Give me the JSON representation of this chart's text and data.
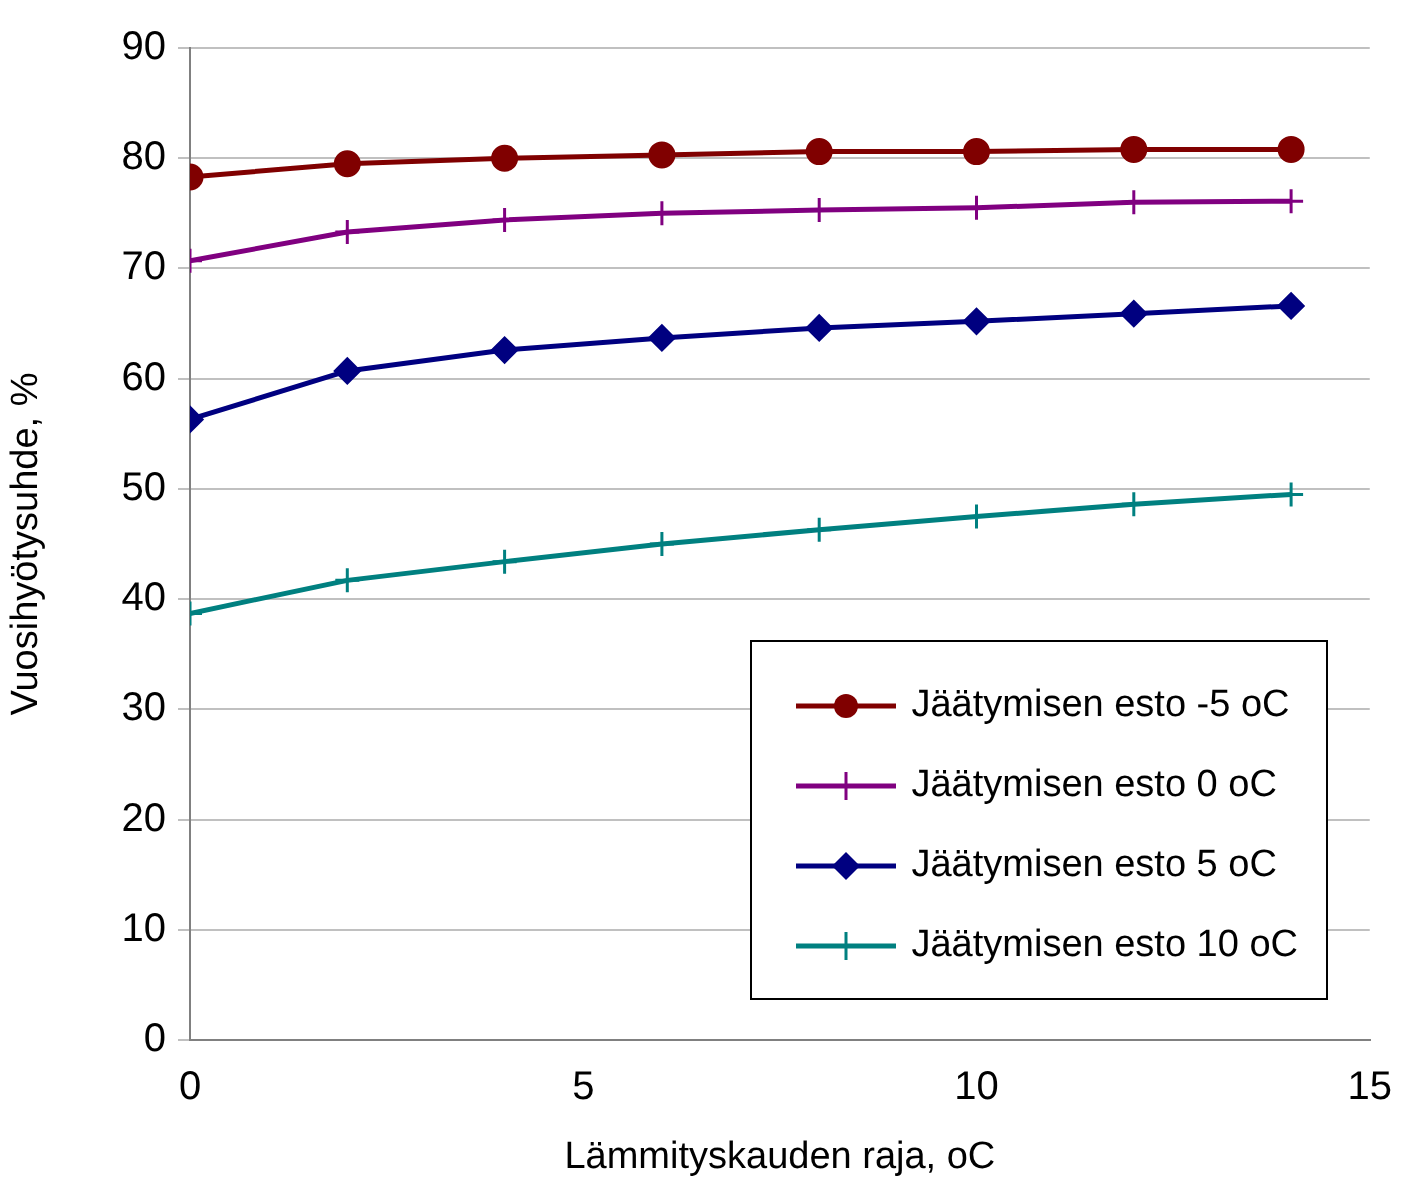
{
  "chart_data": {
    "type": "line",
    "xlabel": "Lämmityskauden raja, oC",
    "ylabel": "Vuosihyötysuhde, %",
    "x": [
      0,
      2,
      4,
      6,
      8,
      10,
      12,
      14
    ],
    "xlim": [
      0,
      15
    ],
    "xticks": [
      0,
      5,
      10,
      15
    ],
    "ylim": [
      0,
      90
    ],
    "yticks": [
      0,
      10,
      20,
      30,
      40,
      50,
      60,
      70,
      80,
      90
    ],
    "grid": "y",
    "legend": "bottom right",
    "line_style": "solid",
    "series": [
      {
        "name": "Jäätymisen esto -5 oC",
        "color": "#800000",
        "marker": "circle",
        "values": [
          78.3,
          79.5,
          80.0,
          80.3,
          80.6,
          80.6,
          80.8,
          80.8
        ]
      },
      {
        "name": "Jäätymisen esto 0 oC",
        "color": "#800080",
        "marker": "cross",
        "values": [
          70.7,
          73.3,
          74.4,
          75.0,
          75.3,
          75.5,
          76.0,
          76.1
        ]
      },
      {
        "name": "Jäätymisen esto 5 oC",
        "color": "#000080",
        "marker": "diamond",
        "values": [
          56.3,
          60.7,
          62.6,
          63.7,
          64.6,
          65.2,
          65.9,
          66.6
        ]
      },
      {
        "name": "Jäätymisen esto 10 oC",
        "color": "#008080",
        "marker": "cross",
        "values": [
          38.7,
          41.7,
          43.4,
          45.0,
          46.3,
          47.5,
          48.6,
          49.5
        ]
      }
    ]
  }
}
